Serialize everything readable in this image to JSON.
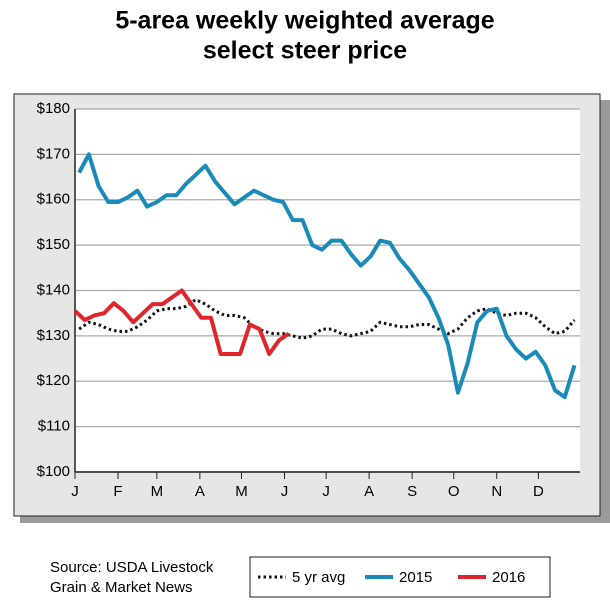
{
  "chart_data": {
    "type": "line",
    "title": [
      "5-area weekly weighted average",
      "select steer price"
    ],
    "source": [
      "Source: USDA Livestock",
      "Grain & Market News"
    ],
    "xlim": [
      1,
      365
    ],
    "xticks": [
      {
        "value": 1,
        "label": "J"
      },
      {
        "value": 32,
        "label": "F"
      },
      {
        "value": 60,
        "label": "M"
      },
      {
        "value": 91,
        "label": "A"
      },
      {
        "value": 121,
        "label": "M"
      },
      {
        "value": 152,
        "label": "J"
      },
      {
        "value": 182,
        "label": "J"
      },
      {
        "value": 213,
        "label": "A"
      },
      {
        "value": 244,
        "label": "S"
      },
      {
        "value": 274,
        "label": "O"
      },
      {
        "value": 305,
        "label": "N"
      },
      {
        "value": 335,
        "label": "D"
      }
    ],
    "ylim": [
      100,
      180
    ],
    "yticks": [
      {
        "value": 100,
        "label": "$100"
      },
      {
        "value": 110,
        "label": "$110"
      },
      {
        "value": 120,
        "label": "$120"
      },
      {
        "value": 130,
        "label": "$130"
      },
      {
        "value": 140,
        "label": "$140"
      },
      {
        "value": 150,
        "label": "$150"
      },
      {
        "value": 160,
        "label": "$160"
      },
      {
        "value": 170,
        "label": "$170"
      },
      {
        "value": 180,
        "label": "$180"
      }
    ],
    "grid": true,
    "series": [
      {
        "name": "5 yr avg",
        "color": "#111111",
        "style": "dotted",
        "x": [
          4,
          11,
          18,
          25,
          32,
          39,
          46,
          53,
          60,
          67,
          74,
          81,
          88,
          95,
          102,
          109,
          116,
          123,
          130,
          137,
          144,
          151,
          158,
          165,
          172,
          179,
          186,
          193,
          200,
          207,
          214,
          221,
          228,
          235,
          242,
          249,
          256,
          263,
          270,
          277,
          284,
          291,
          298,
          305,
          312,
          319,
          326,
          333,
          340,
          347,
          354,
          361
        ],
        "values": [
          131.5,
          133,
          132.5,
          131.5,
          131,
          131,
          132,
          133.5,
          135.5,
          136,
          136,
          136.5,
          138,
          137,
          135.5,
          134.5,
          134.5,
          134,
          132,
          131,
          130.5,
          130.5,
          130,
          129.5,
          130,
          131.5,
          131.5,
          130.5,
          130,
          130.5,
          131,
          133,
          132.5,
          132,
          132,
          132.5,
          132.5,
          131.5,
          130.5,
          131.5,
          134,
          135.5,
          136,
          135,
          134.5,
          135,
          135,
          134,
          132,
          130.5,
          131,
          133.5
        ]
      },
      {
        "name": "2015",
        "color": "#1a8bb8",
        "style": "solid",
        "x": [
          4,
          11,
          18,
          25,
          32,
          39,
          46,
          53,
          60,
          67,
          74,
          81,
          88,
          95,
          102,
          109,
          116,
          123,
          130,
          137,
          144,
          151,
          158,
          165,
          172,
          179,
          186,
          193,
          200,
          207,
          214,
          221,
          228,
          235,
          242,
          249,
          256,
          263,
          270,
          277,
          284,
          291,
          298,
          305,
          312,
          319,
          326,
          333,
          340,
          347,
          354,
          361
        ],
        "values": [
          166,
          170,
          163,
          159.5,
          159.5,
          160.5,
          162,
          158.5,
          159.5,
          161,
          161,
          163.5,
          165.5,
          167.5,
          164,
          161.5,
          159,
          160.5,
          162,
          161,
          160,
          159.5,
          155.5,
          155.5,
          150,
          149,
          151,
          151,
          148,
          145.5,
          147.5,
          151,
          150.5,
          147,
          144.5,
          141.5,
          138.5,
          134,
          128,
          117.5,
          124,
          133,
          135.5,
          136,
          130,
          127,
          125,
          126.5,
          123.5,
          118,
          116.5,
          123.5
        ]
      },
      {
        "name": "2016",
        "color": "#e0262b",
        "style": "solid",
        "x": [
          1,
          8,
          15,
          22,
          29,
          36,
          43,
          50,
          57,
          64,
          71,
          78,
          85,
          92,
          99,
          106,
          113,
          120,
          127,
          134,
          141,
          148,
          155
        ],
        "values": [
          135.5,
          133.5,
          134.5,
          135,
          137.2,
          135.5,
          133,
          135,
          137,
          137,
          138.5,
          140,
          137,
          134,
          134,
          126,
          126,
          126,
          132.5,
          131.5,
          126,
          129,
          130.5
        ]
      }
    ]
  }
}
